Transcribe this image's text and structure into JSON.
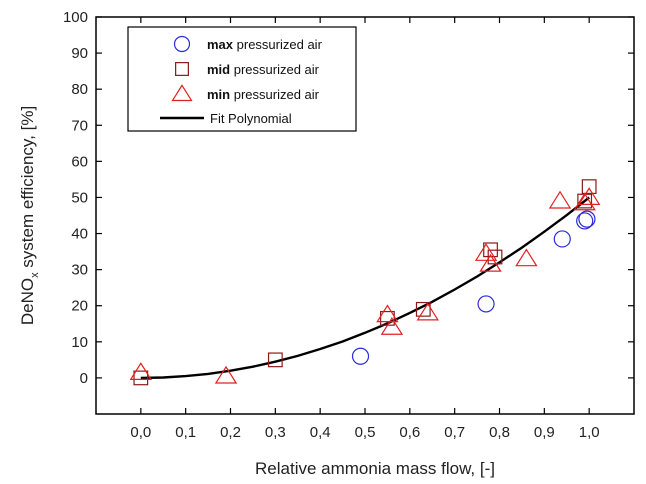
{
  "chart_data": {
    "type": "scatter",
    "xlabel": "Relative ammonia mass  flow, [-]",
    "ylabel_main": "DeNO",
    "ylabel_sub": "x",
    "ylabel_rest": " system efficiency, [%]",
    "xlim": [
      -0.1,
      1.1
    ],
    "ylim": [
      -10,
      100
    ],
    "x_ticks": [
      "0,0",
      "0,1",
      "0,2",
      "0,3",
      "0,4",
      "0,5",
      "0,6",
      "0,7",
      "0,8",
      "0,9",
      "1,0"
    ],
    "x_tick_values": [
      0,
      0.1,
      0.2,
      0.3,
      0.4,
      0.5,
      0.6,
      0.7,
      0.8,
      0.9,
      1.0
    ],
    "y_ticks": [
      "0",
      "10",
      "20",
      "30",
      "40",
      "50",
      "60",
      "70",
      "80",
      "90",
      "100"
    ],
    "y_tick_values": [
      0,
      10,
      20,
      30,
      40,
      50,
      60,
      70,
      80,
      90,
      100
    ],
    "grid": false,
    "legend_position": "top-left",
    "series": [
      {
        "name_bold": "max",
        "name_rest": " pressurized air",
        "marker": "circle",
        "color": "#2b2bdc",
        "points": [
          [
            0.49,
            6
          ],
          [
            0.77,
            20.5
          ],
          [
            0.94,
            38.5
          ],
          [
            0.99,
            43.5
          ],
          [
            0.995,
            44
          ]
        ]
      },
      {
        "name_bold": "mid",
        "name_rest": " pressurized air",
        "marker": "square",
        "color": "#8b1a1a",
        "points": [
          [
            0.0,
            0
          ],
          [
            0.3,
            5
          ],
          [
            0.55,
            16.5
          ],
          [
            0.63,
            19
          ],
          [
            0.78,
            35.5
          ],
          [
            0.79,
            33.5
          ],
          [
            1.0,
            53
          ],
          [
            0.99,
            49
          ]
        ]
      },
      {
        "name_bold": "min",
        "name_rest": " pressurized air",
        "marker": "triangle",
        "color": "#e32020",
        "points": [
          [
            0.0,
            1.5
          ],
          [
            0.19,
            0.5
          ],
          [
            0.55,
            17.5
          ],
          [
            0.56,
            14
          ],
          [
            0.64,
            18
          ],
          [
            0.77,
            34.5
          ],
          [
            0.78,
            31.5
          ],
          [
            0.86,
            33
          ],
          [
            0.935,
            49
          ],
          [
            0.99,
            48.5
          ],
          [
            1.0,
            50
          ]
        ]
      }
    ],
    "fit": {
      "name": "Fit Polynomial",
      "color": "#000000",
      "x": [
        0.0,
        0.05,
        0.1,
        0.15,
        0.2,
        0.25,
        0.3,
        0.35,
        0.4,
        0.45,
        0.5,
        0.55,
        0.6,
        0.65,
        0.7,
        0.75,
        0.8,
        0.85,
        0.9,
        0.95,
        1.0
      ],
      "y": [
        0,
        0.1,
        0.5,
        1.1,
        2.0,
        3.1,
        4.5,
        6.1,
        8.0,
        10.1,
        12.5,
        15.1,
        18.0,
        21.1,
        24.5,
        28.1,
        32.0,
        36.1,
        40.5,
        45.1,
        50.0
      ]
    }
  }
}
